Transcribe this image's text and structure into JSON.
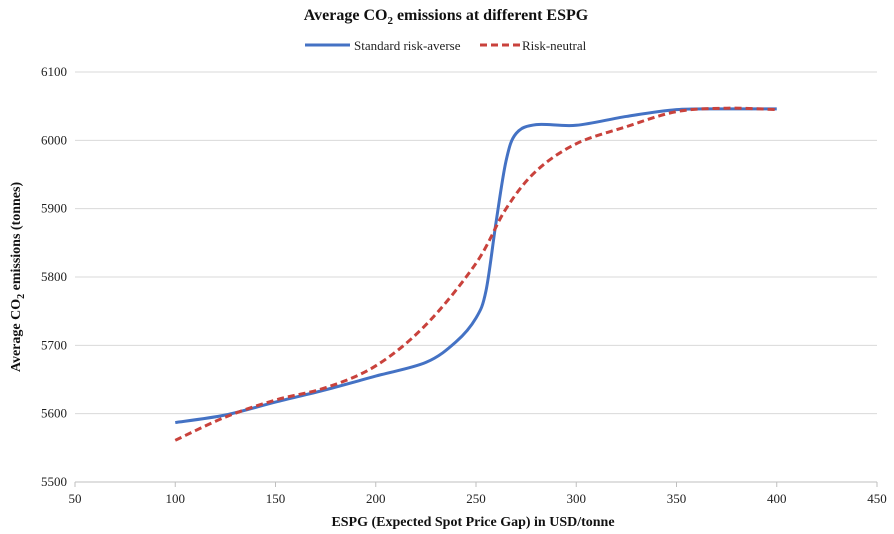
{
  "chart_data": {
    "type": "line",
    "title_parts": [
      "Average CO",
      "2",
      " emissions at different ESPG"
    ],
    "xlabel": "ESPG (Expected Spot Price Gap) in USD/tonne",
    "ylabel_parts": [
      "Average CO",
      "2",
      " emissions (tonnes)"
    ],
    "xlim": [
      50,
      450
    ],
    "ylim": [
      5500,
      6100
    ],
    "x_ticks": [
      50,
      100,
      150,
      200,
      250,
      300,
      350,
      400,
      450
    ],
    "y_ticks": [
      5500,
      5600,
      5700,
      5800,
      5900,
      6000,
      6100
    ],
    "grid": "horizontal",
    "legend_position": "top-center",
    "series": [
      {
        "name": "Standard risk-averse",
        "color": "#4472c4",
        "style": "solid",
        "x": [
          100,
          125,
          150,
          175,
          200,
          225,
          240,
          250,
          255,
          260,
          265,
          270,
          280,
          300,
          325,
          350,
          375,
          400
        ],
        "y": [
          5587,
          5598,
          5617,
          5635,
          5655,
          5675,
          5705,
          5740,
          5780,
          5880,
          5970,
          6010,
          6023,
          6022,
          6035,
          6045,
          6046,
          6046
        ]
      },
      {
        "name": "Risk-neutral",
        "color": "#c9423c",
        "style": "dashed",
        "x": [
          100,
          125,
          150,
          175,
          200,
          225,
          250,
          265,
          280,
          300,
          325,
          350,
          375,
          400
        ],
        "y": [
          5561,
          5595,
          5620,
          5638,
          5670,
          5730,
          5820,
          5900,
          5955,
          5995,
          6020,
          6042,
          6047,
          6045
        ]
      }
    ]
  }
}
